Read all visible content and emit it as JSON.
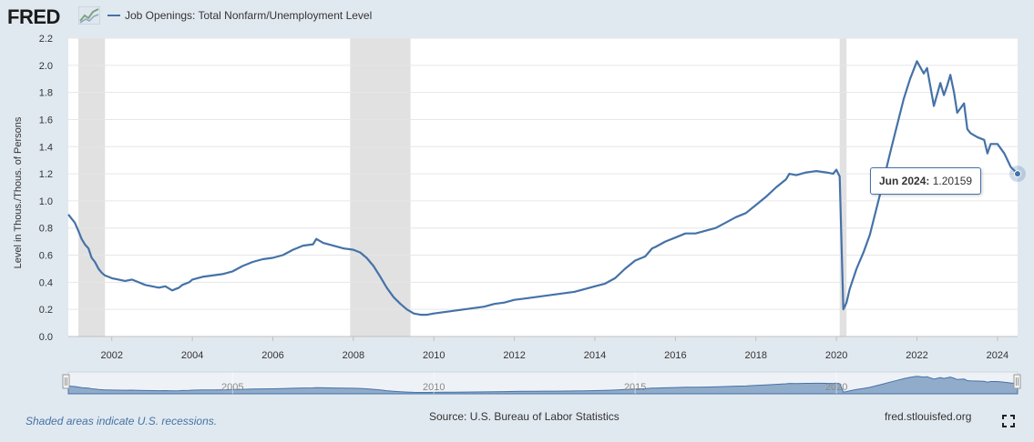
{
  "header": {
    "logo_text": "FRED",
    "legend_label": "Job Openings: Total Nonfarm/Unemployment Level"
  },
  "tooltip": {
    "date": "Jun 2024:",
    "value": "1.20159"
  },
  "footer": {
    "recession_note": "Shaded areas indicate U.S. recessions.",
    "source": "Source: U.S. Bureau of Labor Statistics",
    "site": "fred.stlouisfed.org"
  },
  "icons": {
    "fullscreen": "fullscreen-icon",
    "logo_graph": "fred-graph-icon"
  },
  "chart_data": {
    "type": "line",
    "title": "",
    "xlabel": "",
    "ylabel": "Level in Thous./Thous. of Persons",
    "ylim": [
      0.0,
      2.2
    ],
    "xlim": [
      2000.92,
      2024.5
    ],
    "y_ticks": [
      "0.0",
      "0.2",
      "0.4",
      "0.6",
      "0.8",
      "1.0",
      "1.2",
      "1.4",
      "1.6",
      "1.8",
      "2.0",
      "2.2"
    ],
    "x_ticks": [
      "2002",
      "2004",
      "2006",
      "2008",
      "2010",
      "2012",
      "2014",
      "2016",
      "2018",
      "2020",
      "2022",
      "2024"
    ],
    "navigator_ticks": [
      "2005",
      "2010",
      "2015",
      "2020"
    ],
    "grid": true,
    "line_color": "#4572a7",
    "recession_color": "#e1e1e1",
    "recessions": [
      [
        2001.17,
        2001.83
      ],
      [
        2007.92,
        2009.42
      ],
      [
        2020.08,
        2020.25
      ]
    ],
    "series": [
      {
        "x": [
          2000.92,
          2001.0,
          2001.08,
          2001.17,
          2001.25,
          2001.33,
          2001.42,
          2001.5,
          2001.58,
          2001.67,
          2001.75,
          2001.83,
          2001.92,
          2002.0,
          2002.17,
          2002.33,
          2002.5,
          2002.67,
          2002.83,
          2003.0,
          2003.17,
          2003.33,
          2003.5,
          2003.67,
          2003.75,
          2003.92,
          2004.0,
          2004.25,
          2004.5,
          2004.75,
          2005.0,
          2005.25,
          2005.5,
          2005.75,
          2006.0,
          2006.25,
          2006.5,
          2006.75,
          2007.0,
          2007.08,
          2007.25,
          2007.5,
          2007.75,
          2008.0,
          2008.17,
          2008.33,
          2008.5,
          2008.67,
          2008.83,
          2009.0,
          2009.17,
          2009.33,
          2009.5,
          2009.67,
          2009.83,
          2010.0,
          2010.25,
          2010.5,
          2010.75,
          2011.0,
          2011.25,
          2011.5,
          2011.75,
          2012.0,
          2012.25,
          2012.5,
          2012.75,
          2013.0,
          2013.25,
          2013.5,
          2013.75,
          2014.0,
          2014.25,
          2014.5,
          2014.75,
          2015.0,
          2015.25,
          2015.42,
          2015.5,
          2015.75,
          2016.0,
          2016.25,
          2016.5,
          2016.75,
          2017.0,
          2017.25,
          2017.5,
          2017.75,
          2018.0,
          2018.25,
          2018.5,
          2018.75,
          2018.83,
          2019.0,
          2019.25,
          2019.5,
          2019.75,
          2019.92,
          2020.0,
          2020.08,
          2020.17,
          2020.25,
          2020.33,
          2020.5,
          2020.67,
          2020.83,
          2021.0,
          2021.17,
          2021.33,
          2021.5,
          2021.67,
          2021.83,
          2022.0,
          2022.17,
          2022.25,
          2022.42,
          2022.58,
          2022.67,
          2022.75,
          2022.83,
          2022.92,
          2023.0,
          2023.17,
          2023.25,
          2023.33,
          2023.5,
          2023.67,
          2023.75,
          2023.83,
          2024.0,
          2024.17,
          2024.33,
          2024.5
        ],
        "y": [
          0.9,
          0.87,
          0.84,
          0.78,
          0.72,
          0.68,
          0.65,
          0.58,
          0.55,
          0.5,
          0.47,
          0.45,
          0.44,
          0.43,
          0.42,
          0.41,
          0.42,
          0.4,
          0.38,
          0.37,
          0.36,
          0.37,
          0.34,
          0.36,
          0.38,
          0.4,
          0.42,
          0.44,
          0.45,
          0.46,
          0.48,
          0.52,
          0.55,
          0.57,
          0.58,
          0.6,
          0.64,
          0.67,
          0.68,
          0.72,
          0.69,
          0.67,
          0.65,
          0.64,
          0.62,
          0.58,
          0.52,
          0.44,
          0.36,
          0.29,
          0.24,
          0.2,
          0.17,
          0.16,
          0.16,
          0.17,
          0.18,
          0.19,
          0.2,
          0.21,
          0.22,
          0.24,
          0.25,
          0.27,
          0.28,
          0.29,
          0.3,
          0.31,
          0.32,
          0.33,
          0.35,
          0.37,
          0.39,
          0.43,
          0.5,
          0.56,
          0.59,
          0.65,
          0.66,
          0.7,
          0.73,
          0.76,
          0.76,
          0.78,
          0.8,
          0.84,
          0.88,
          0.91,
          0.97,
          1.03,
          1.1,
          1.16,
          1.2,
          1.19,
          1.21,
          1.22,
          1.21,
          1.2,
          1.23,
          1.18,
          0.2,
          0.25,
          0.35,
          0.5,
          0.62,
          0.75,
          0.95,
          1.15,
          1.35,
          1.55,
          1.75,
          1.9,
          2.03,
          1.94,
          1.98,
          1.7,
          1.87,
          1.78,
          1.85,
          1.93,
          1.8,
          1.65,
          1.72,
          1.53,
          1.5,
          1.47,
          1.45,
          1.35,
          1.42,
          1.42,
          1.35,
          1.25,
          1.2
        ]
      }
    ]
  }
}
